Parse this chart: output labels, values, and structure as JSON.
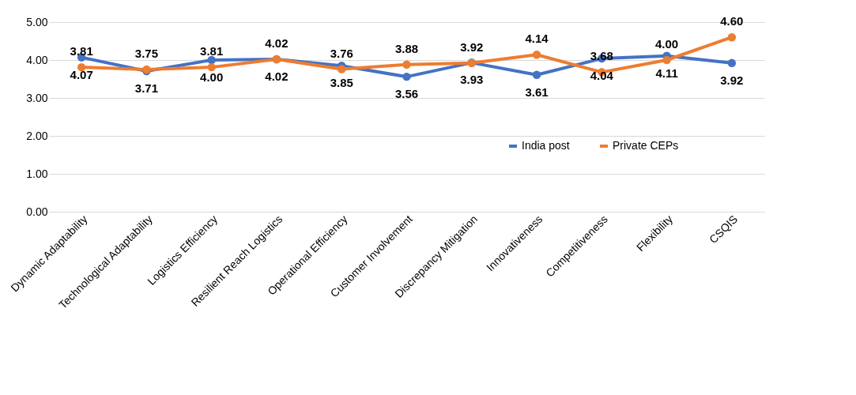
{
  "chart_data": {
    "type": "line",
    "categories": [
      "Dynamic Adaptability",
      "Technological Adaptability",
      "Logistics Efficiency",
      "Resilient Reach Logistics",
      "Operational Efficiency",
      "Customer Involvement",
      "Discrepancy Mitigation",
      "Innovativeness",
      "Competitiveness",
      "Flexibility",
      "CSQIS"
    ],
    "series": [
      {
        "name": "India post",
        "color": "#4472c4",
        "values": [
          4.07,
          3.71,
          4.0,
          4.02,
          3.85,
          3.56,
          3.93,
          3.61,
          4.04,
          4.11,
          3.92
        ],
        "value_labels": [
          "4.07",
          "3.71",
          "4.00",
          "4.02",
          "3.85",
          "3.56",
          "3.93",
          "3.61",
          "4.04",
          "4.11",
          "3.92"
        ]
      },
      {
        "name": "Private CEPs",
        "color": "#ed7d31",
        "values": [
          3.81,
          3.75,
          3.81,
          4.02,
          3.76,
          3.88,
          3.92,
          4.14,
          3.68,
          4.0,
          4.6
        ],
        "value_labels": [
          "3.81",
          "3.75",
          "3.81",
          "4.02",
          "3.76",
          "3.88",
          "3.92",
          "4.14",
          "3.68",
          "4.00",
          "4.60"
        ]
      }
    ],
    "ylim": [
      0,
      5
    ],
    "yticks": [
      {
        "value": 0,
        "label": "0.00"
      },
      {
        "value": 1,
        "label": "1.00"
      },
      {
        "value": 2,
        "label": "2.00"
      },
      {
        "value": 3,
        "label": "3.00"
      },
      {
        "value": 4,
        "label": "4.00"
      },
      {
        "value": 5,
        "label": "5.00"
      }
    ],
    "grid": "y",
    "legend": "right",
    "marker": "circle",
    "line_style": "solid"
  }
}
